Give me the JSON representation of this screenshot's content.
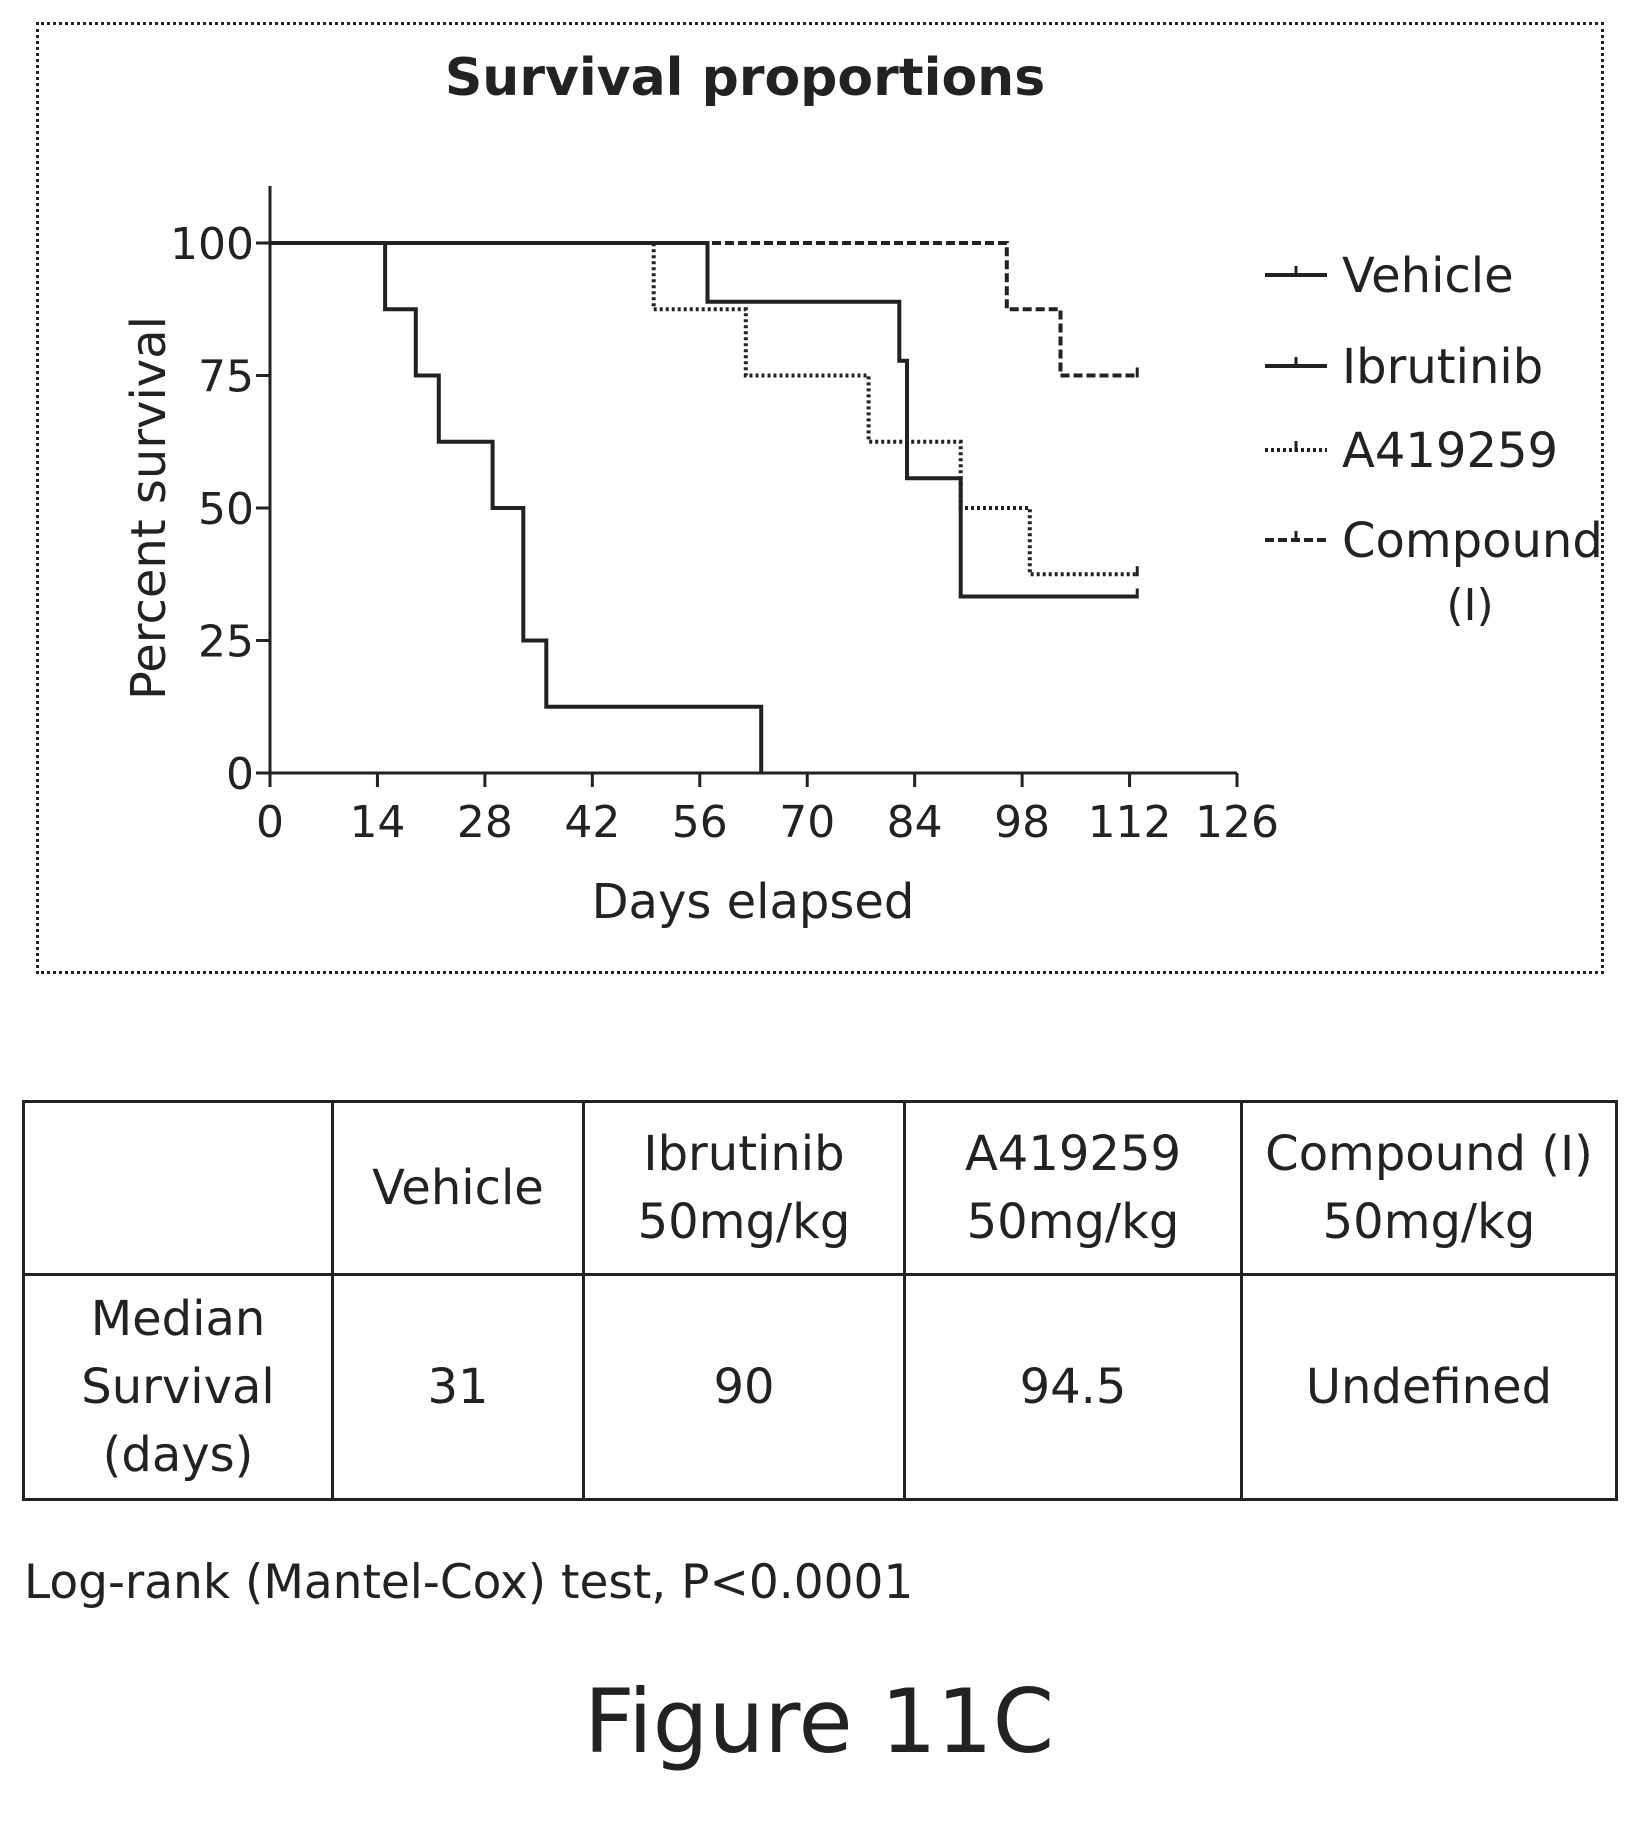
{
  "chart_data": {
    "type": "line",
    "subtype": "kaplan-meier-step",
    "title": "Survival proportions",
    "xlabel": "Days elapsed",
    "ylabel": "Percent survival",
    "xlim": [
      0,
      126
    ],
    "ylim": [
      0,
      100
    ],
    "x_ticks": [
      0,
      14,
      28,
      42,
      56,
      70,
      84,
      98,
      112,
      126
    ],
    "y_ticks": [
      0,
      25,
      50,
      75,
      100
    ],
    "grid": false,
    "legend_position": "right",
    "series": [
      {
        "name": "Vehicle",
        "style": "solid",
        "points": [
          [
            0,
            100
          ],
          [
            15,
            100
          ],
          [
            15,
            87.5
          ],
          [
            19,
            87.5
          ],
          [
            19,
            75
          ],
          [
            22,
            75
          ],
          [
            22,
            62.5
          ],
          [
            29,
            62.5
          ],
          [
            29,
            50
          ],
          [
            33,
            50
          ],
          [
            33,
            25
          ],
          [
            36,
            25
          ],
          [
            36,
            12.5
          ],
          [
            64,
            12.5
          ],
          [
            64,
            0
          ]
        ]
      },
      {
        "name": "Ibrutinib",
        "style": "solid",
        "points": [
          [
            0,
            100
          ],
          [
            57,
            100
          ],
          [
            57,
            88.9
          ],
          [
            82,
            88.9
          ],
          [
            82,
            77.8
          ],
          [
            83,
            77.8
          ],
          [
            83,
            55.6
          ],
          [
            90,
            55.6
          ],
          [
            90,
            33.3
          ],
          [
            113,
            33.3
          ]
        ]
      },
      {
        "name": "A419259",
        "style": "dotted",
        "points": [
          [
            0,
            100
          ],
          [
            50,
            100
          ],
          [
            50,
            87.5
          ],
          [
            62,
            87.5
          ],
          [
            62,
            75
          ],
          [
            78,
            75
          ],
          [
            78,
            62.5
          ],
          [
            90,
            62.5
          ],
          [
            90,
            50
          ],
          [
            99,
            50
          ],
          [
            99,
            37.5
          ],
          [
            113,
            37.5
          ]
        ]
      },
      {
        "name": "Compound (I)",
        "style": "dashed",
        "points": [
          [
            0,
            100
          ],
          [
            96,
            100
          ],
          [
            96,
            87.5
          ],
          [
            103,
            87.5
          ],
          [
            103,
            75
          ],
          [
            113,
            75
          ]
        ]
      }
    ]
  },
  "legend": {
    "items": [
      "Vehicle",
      "Ibrutinib",
      "A419259",
      "Compound"
    ],
    "extra_line": "(I)"
  },
  "table": {
    "header": [
      "",
      "Vehicle",
      "Ibrutinib\n50mg/kg",
      "A419259\n50mg/kg",
      "Compound (I)\n50mg/kg"
    ],
    "row_label": "Median\nSurvival\n(days)",
    "values": [
      "31",
      "90",
      "94.5",
      "Undefined"
    ]
  },
  "stat_note": "Log-rank (Mantel-Cox) test, P<0.0001",
  "figure_label": "Figure 11C"
}
